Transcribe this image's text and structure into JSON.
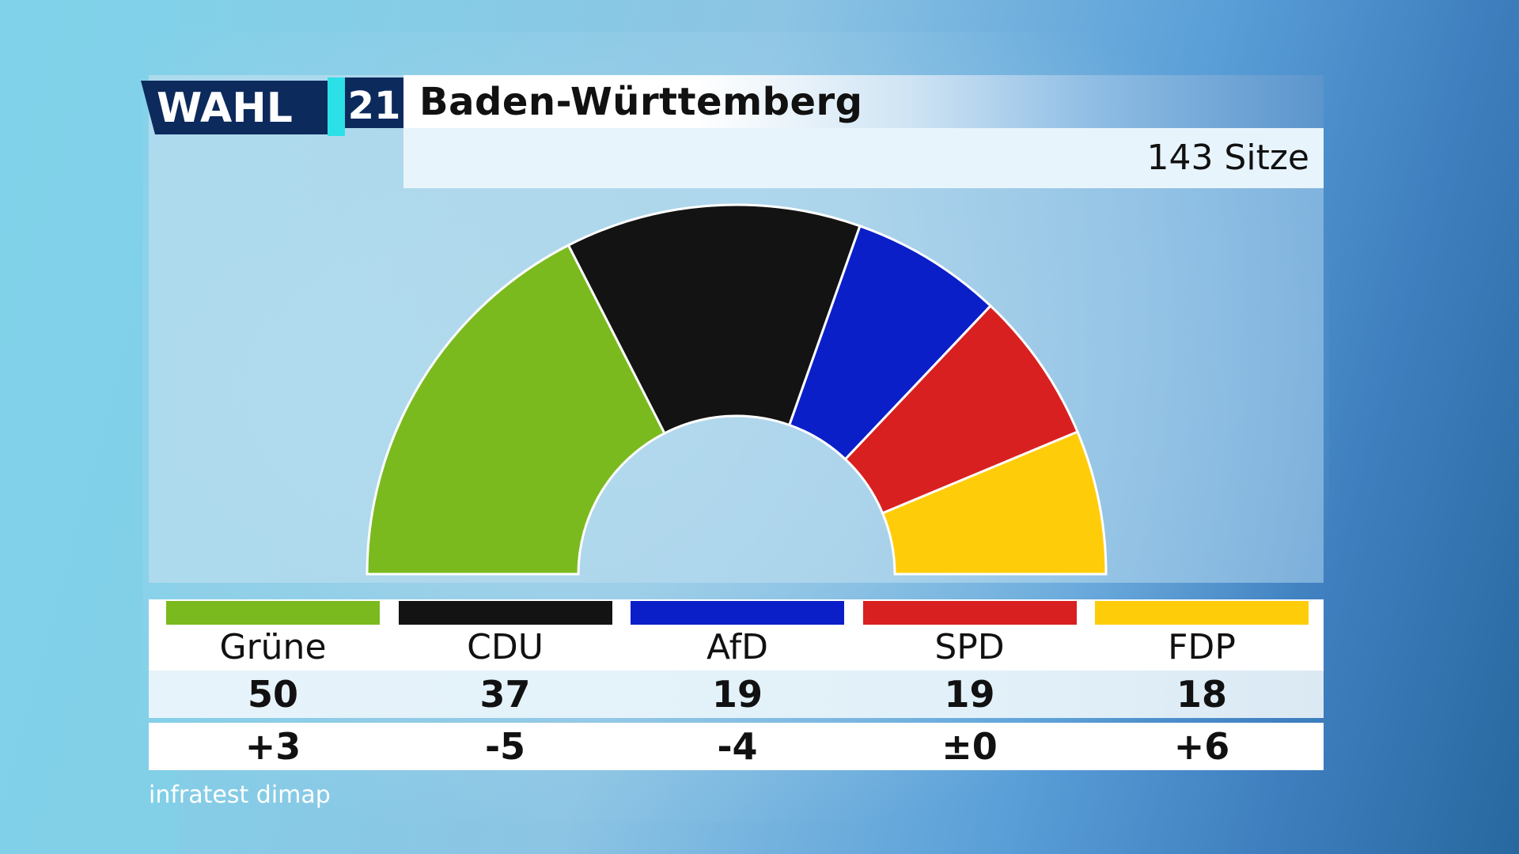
{
  "logo": {
    "word": "WAHL",
    "number": "21"
  },
  "header": {
    "title": "Baden-Württemberg",
    "seats_label": "143 Sitze"
  },
  "source": "infratest dimap",
  "chart_data": {
    "type": "pie",
    "shape": "half-donut",
    "total": 143,
    "parties": [
      {
        "name": "Grüne",
        "seats": 50,
        "change": "+3",
        "color": "#7aba1e"
      },
      {
        "name": "CDU",
        "seats": 37,
        "change": "-5",
        "color": "#131313"
      },
      {
        "name": "AfD",
        "seats": 19,
        "change": "-4",
        "color": "#0a1fc8"
      },
      {
        "name": "SPD",
        "seats": 19,
        "change": "±0",
        "color": "#d92020"
      },
      {
        "name": "FDP",
        "seats": 18,
        "change": "+6",
        "color": "#ffcc0a"
      }
    ]
  }
}
